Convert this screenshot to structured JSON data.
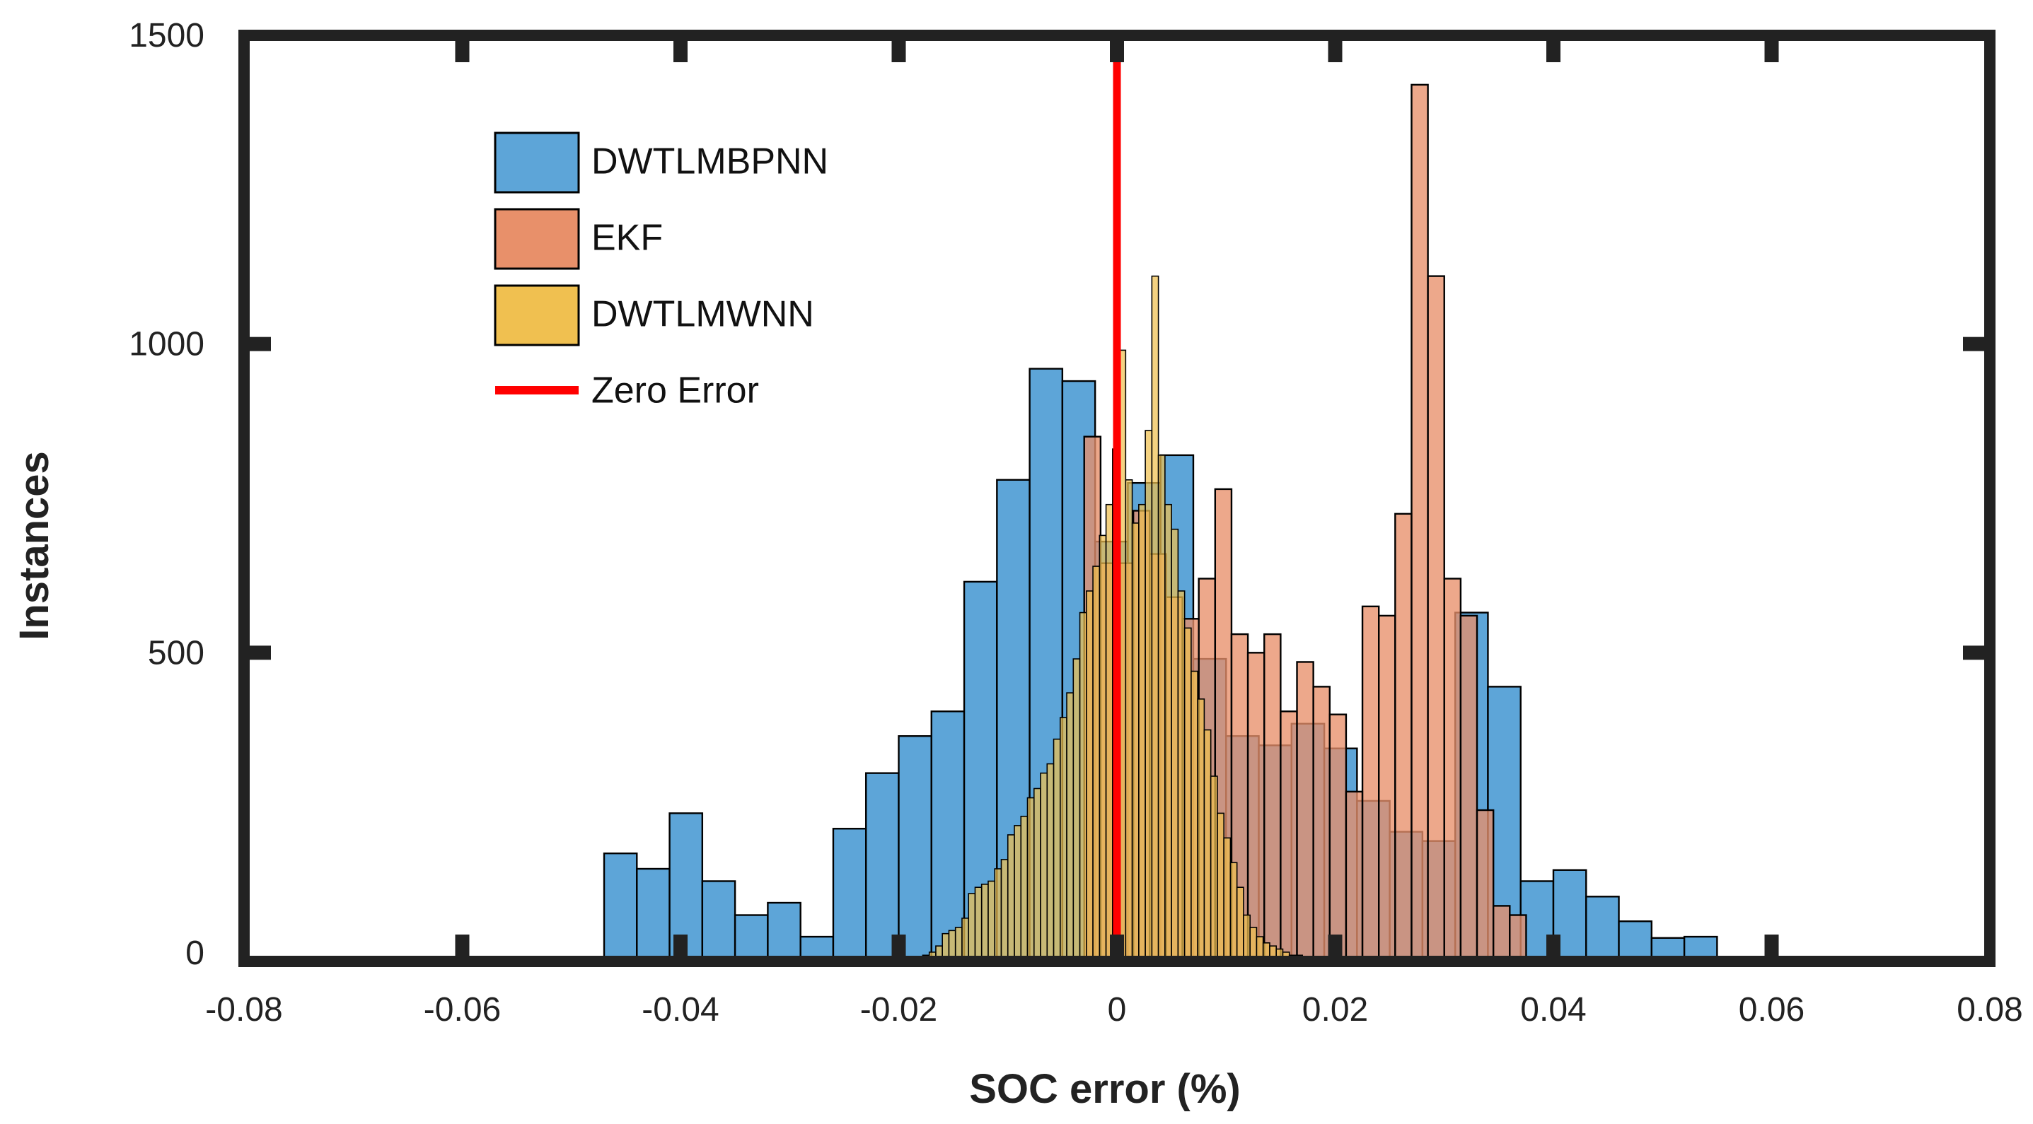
{
  "chart_data": {
    "type": "bar",
    "subtype": "overlaid-histogram",
    "title": "",
    "xlabel": "SOC error (%)",
    "ylabel": "Instances",
    "xlim": [
      -0.08,
      0.08
    ],
    "ylim": [
      0,
      1500
    ],
    "xticks": [
      -0.08,
      -0.06,
      -0.04,
      -0.02,
      0,
      0.02,
      0.04,
      0.06,
      0.08
    ],
    "xtick_labels": [
      "-0.08",
      "-0.06",
      "-0.04",
      "-0.02",
      "0",
      "0.02",
      "0.04",
      "0.06",
      "0.08"
    ],
    "yticks": [
      0,
      500,
      1000,
      1500
    ],
    "ytick_labels": [
      "0",
      "500",
      "1000",
      "1500"
    ],
    "legend_position": "top-left",
    "series": [
      {
        "name": "DWTLMBPNN",
        "color": "#5DA5D8",
        "bin_width": 0.003,
        "bins": [
          [
            -0.0605,
            5
          ],
          [
            -0.0575,
            0
          ],
          [
            -0.0545,
            4
          ],
          [
            -0.0515,
            0
          ],
          [
            -0.0485,
            0
          ],
          [
            -0.0455,
            175
          ],
          [
            -0.0425,
            150
          ],
          [
            -0.0395,
            240
          ],
          [
            -0.0365,
            130
          ],
          [
            -0.0335,
            75
          ],
          [
            -0.0305,
            95
          ],
          [
            -0.0275,
            40
          ],
          [
            -0.0245,
            215
          ],
          [
            -0.0215,
            305
          ],
          [
            -0.0185,
            365
          ],
          [
            -0.0155,
            405
          ],
          [
            -0.0125,
            615
          ],
          [
            -0.0095,
            780
          ],
          [
            -0.0065,
            960
          ],
          [
            -0.0035,
            940
          ],
          [
            -0.0005,
            680
          ],
          [
            0.0025,
            775
          ],
          [
            0.0055,
            820
          ],
          [
            0.0085,
            490
          ],
          [
            0.0115,
            365
          ],
          [
            0.0145,
            350
          ],
          [
            0.0175,
            385
          ],
          [
            0.0205,
            345
          ],
          [
            0.0235,
            260
          ],
          [
            0.0265,
            210
          ],
          [
            0.0295,
            195
          ],
          [
            0.0325,
            565
          ],
          [
            0.0355,
            445
          ],
          [
            0.0385,
            130
          ],
          [
            0.0415,
            148
          ],
          [
            0.0445,
            105
          ],
          [
            0.0475,
            65
          ],
          [
            0.0505,
            38
          ],
          [
            0.0535,
            40
          ],
          [
            0.0565,
            5
          ]
        ]
      },
      {
        "name": "EKF",
        "color": "#E8906A",
        "bin_width": 0.0015,
        "bins": [
          [
            -0.00225,
            850
          ],
          [
            -0.00075,
            645
          ],
          [
            0.00075,
            645
          ],
          [
            0.00225,
            730
          ],
          [
            0.00375,
            660
          ],
          [
            0.00525,
            590
          ],
          [
            0.00675,
            555
          ],
          [
            0.00825,
            620
          ],
          [
            0.00975,
            765
          ],
          [
            0.01125,
            530
          ],
          [
            0.01275,
            500
          ],
          [
            0.01425,
            530
          ],
          [
            0.01575,
            405
          ],
          [
            0.01725,
            485
          ],
          [
            0.01875,
            445
          ],
          [
            0.02025,
            400
          ],
          [
            0.02175,
            275
          ],
          [
            0.02325,
            575
          ],
          [
            0.02475,
            560
          ],
          [
            0.02625,
            725
          ],
          [
            0.02775,
            1420
          ],
          [
            0.02925,
            1110
          ],
          [
            0.03075,
            620
          ],
          [
            0.03225,
            560
          ],
          [
            0.03375,
            245
          ],
          [
            0.03525,
            90
          ],
          [
            0.03675,
            75
          ]
        ]
      },
      {
        "name": "DWTLMWNN",
        "color": "#F0C050",
        "bin_width": 0.0006,
        "bins": [
          [
            -0.0175,
            10
          ],
          [
            -0.0169,
            15
          ],
          [
            -0.0163,
            25
          ],
          [
            -0.0157,
            45
          ],
          [
            -0.0151,
            50
          ],
          [
            -0.0145,
            55
          ],
          [
            -0.0139,
            70
          ],
          [
            -0.0133,
            110
          ],
          [
            -0.0127,
            120
          ],
          [
            -0.0121,
            125
          ],
          [
            -0.0115,
            130
          ],
          [
            -0.0109,
            150
          ],
          [
            -0.0103,
            165
          ],
          [
            -0.0097,
            205
          ],
          [
            -0.0091,
            220
          ],
          [
            -0.0085,
            235
          ],
          [
            -0.0079,
            265
          ],
          [
            -0.0073,
            280
          ],
          [
            -0.0067,
            305
          ],
          [
            -0.0061,
            320
          ],
          [
            -0.0055,
            360
          ],
          [
            -0.0049,
            395
          ],
          [
            -0.0043,
            435
          ],
          [
            -0.0037,
            490
          ],
          [
            -0.0031,
            565
          ],
          [
            -0.0025,
            600
          ],
          [
            -0.0019,
            640
          ],
          [
            -0.0013,
            690
          ],
          [
            -0.0007,
            740
          ],
          [
            -0.0001,
            830
          ],
          [
            0.0005,
            990
          ],
          [
            0.0011,
            780
          ],
          [
            0.0017,
            710
          ],
          [
            0.0023,
            740
          ],
          [
            0.0029,
            860
          ],
          [
            0.0035,
            1110
          ],
          [
            0.0041,
            820
          ],
          [
            0.0047,
            740
          ],
          [
            0.0053,
            700
          ],
          [
            0.0059,
            600
          ],
          [
            0.0065,
            540
          ],
          [
            0.0071,
            470
          ],
          [
            0.0077,
            425
          ],
          [
            0.0083,
            375
          ],
          [
            0.0089,
            300
          ],
          [
            0.0095,
            240
          ],
          [
            0.0101,
            200
          ],
          [
            0.0107,
            160
          ],
          [
            0.0113,
            120
          ],
          [
            0.0119,
            75
          ],
          [
            0.0125,
            55
          ],
          [
            0.0131,
            40
          ],
          [
            0.0137,
            30
          ],
          [
            0.0143,
            25
          ],
          [
            0.0149,
            20
          ],
          [
            0.0155,
            15
          ],
          [
            0.0161,
            10
          ],
          [
            0.0167,
            10
          ],
          [
            0.0173,
            8
          ],
          [
            0.0179,
            6
          ],
          [
            0.0185,
            5
          ],
          [
            0.0191,
            5
          ],
          [
            0.0197,
            4
          ],
          [
            0.0203,
            4
          ],
          [
            0.0209,
            3
          ],
          [
            0.0215,
            2
          ],
          [
            0.0221,
            2
          ],
          [
            0.0227,
            1
          ]
        ]
      },
      {
        "name": "Zero Error",
        "color": "#FF0000",
        "type": "vline",
        "x": 0
      }
    ]
  }
}
